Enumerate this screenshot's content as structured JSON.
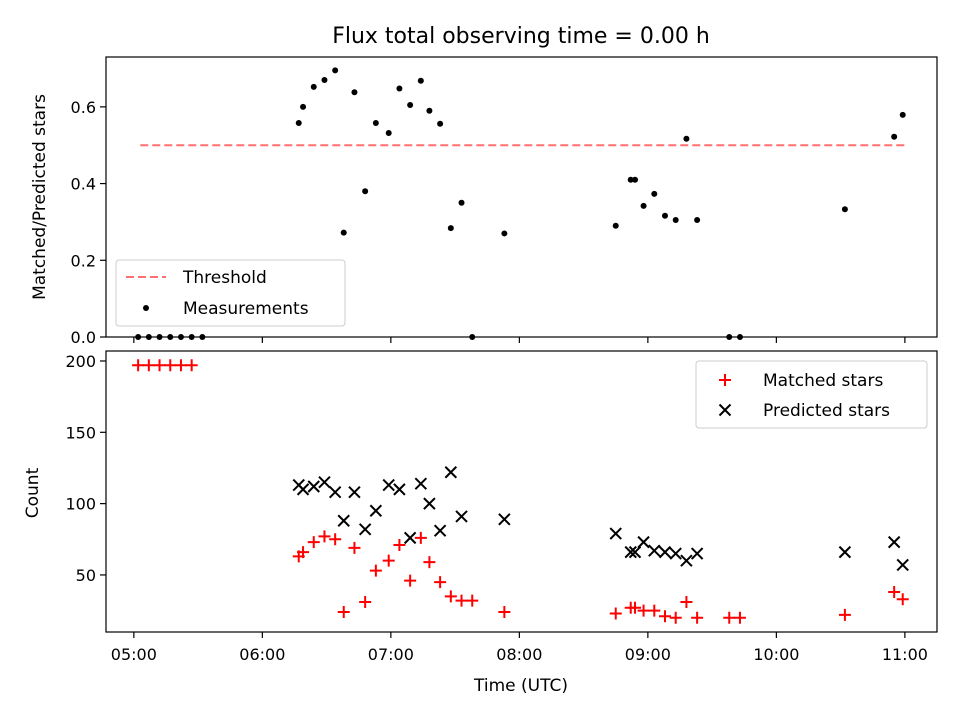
{
  "chart_data": [
    {
      "type": "scatter",
      "title": "Flux total observing time = 0.00 h",
      "xlabel": "",
      "ylabel": "Matched/Predicted stars",
      "xlim": [
        "04:47",
        "11:15"
      ],
      "ylim": [
        0,
        0.73
      ],
      "yticks": [
        0.0,
        0.2,
        0.4,
        0.6
      ],
      "ytick_labels": [
        "0.0",
        "0.2",
        "0.4",
        "0.6"
      ],
      "legend": {
        "placement": "bottom-left",
        "entries": [
          "Threshold",
          "Measurements"
        ]
      },
      "threshold": {
        "name": "Threshold",
        "value": 0.5,
        "x_start": "05:03",
        "x_end": "11:00",
        "color": "#ff6f6f",
        "style": "dashed"
      },
      "series": [
        {
          "name": "Measurements",
          "color": "#000000",
          "marker": "dot",
          "points": [
            [
              "05:02",
              0.0
            ],
            [
              "05:07",
              0.0
            ],
            [
              "05:12",
              0.0
            ],
            [
              "05:17",
              0.0
            ],
            [
              "05:22",
              0.0
            ],
            [
              "05:27",
              0.0
            ],
            [
              "05:32",
              0.0
            ],
            [
              "06:17",
              0.558
            ],
            [
              "06:19",
              0.6
            ],
            [
              "06:24",
              0.652
            ],
            [
              "06:29",
              0.67
            ],
            [
              "06:34",
              0.695
            ],
            [
              "06:38",
              0.272
            ],
            [
              "06:43",
              0.638
            ],
            [
              "06:48",
              0.38
            ],
            [
              "06:53",
              0.558
            ],
            [
              "06:59",
              0.532
            ],
            [
              "07:04",
              0.648
            ],
            [
              "07:09",
              0.605
            ],
            [
              "07:14",
              0.668
            ],
            [
              "07:18",
              0.59
            ],
            [
              "07:23",
              0.556
            ],
            [
              "07:28",
              0.284
            ],
            [
              "07:33",
              0.35
            ],
            [
              "07:38",
              0.0
            ],
            [
              "07:53",
              0.27
            ],
            [
              "08:45",
              0.29
            ],
            [
              "08:52",
              0.41
            ],
            [
              "08:54",
              0.41
            ],
            [
              "08:58",
              0.342
            ],
            [
              "09:03",
              0.373
            ],
            [
              "09:08",
              0.316
            ],
            [
              "09:13",
              0.305
            ],
            [
              "09:18",
              0.517
            ],
            [
              "09:23",
              0.305
            ],
            [
              "09:38",
              0.0
            ],
            [
              "09:43",
              0.0
            ],
            [
              "10:32",
              0.333
            ],
            [
              "10:55",
              0.522
            ],
            [
              "10:59",
              0.579
            ]
          ]
        }
      ]
    },
    {
      "type": "scatter",
      "title": "",
      "xlabel": "Time (UTC)",
      "ylabel": "Count",
      "xlim": [
        "04:47",
        "11:15"
      ],
      "ylim": [
        10,
        207
      ],
      "yticks": [
        50,
        100,
        150,
        200
      ],
      "ytick_labels": [
        "50",
        "100",
        "150",
        "200"
      ],
      "xticks": [
        "05:00",
        "06:00",
        "07:00",
        "08:00",
        "09:00",
        "10:00",
        "11:00"
      ],
      "legend": {
        "placement": "top-right",
        "entries": [
          "Matched stars",
          "Predicted stars"
        ]
      },
      "series": [
        {
          "name": "Matched stars",
          "color": "#ff0000",
          "marker": "plus",
          "points": [
            [
              "05:02",
              197
            ],
            [
              "05:07",
              197
            ],
            [
              "05:12",
              197
            ],
            [
              "05:17",
              197
            ],
            [
              "05:22",
              197
            ],
            [
              "05:27",
              197
            ],
            [
              "06:17",
              63
            ],
            [
              "06:19",
              66
            ],
            [
              "06:24",
              73
            ],
            [
              "06:29",
              77
            ],
            [
              "06:34",
              75
            ],
            [
              "06:38",
              24
            ],
            [
              "06:43",
              69
            ],
            [
              "06:48",
              31
            ],
            [
              "06:53",
              53
            ],
            [
              "06:59",
              60
            ],
            [
              "07:04",
              71
            ],
            [
              "07:09",
              46
            ],
            [
              "07:14",
              76
            ],
            [
              "07:18",
              59
            ],
            [
              "07:23",
              45
            ],
            [
              "07:28",
              35
            ],
            [
              "07:33",
              32
            ],
            [
              "07:38",
              32
            ],
            [
              "07:53",
              24
            ],
            [
              "08:45",
              23
            ],
            [
              "08:52",
              27
            ],
            [
              "08:54",
              27
            ],
            [
              "08:58",
              25
            ],
            [
              "09:03",
              25
            ],
            [
              "09:08",
              21
            ],
            [
              "09:13",
              20
            ],
            [
              "09:18",
              31
            ],
            [
              "09:23",
              20
            ],
            [
              "09:38",
              20
            ],
            [
              "09:43",
              20
            ],
            [
              "10:32",
              22
            ],
            [
              "10:55",
              38
            ],
            [
              "10:59",
              33
            ]
          ]
        },
        {
          "name": "Predicted stars",
          "color": "#000000",
          "marker": "x",
          "points": [
            [
              "06:17",
              113
            ],
            [
              "06:19",
              110
            ],
            [
              "06:24",
              112
            ],
            [
              "06:29",
              115
            ],
            [
              "06:34",
              108
            ],
            [
              "06:38",
              88
            ],
            [
              "06:43",
              108
            ],
            [
              "06:48",
              82
            ],
            [
              "06:53",
              95
            ],
            [
              "06:59",
              113
            ],
            [
              "07:04",
              110
            ],
            [
              "07:09",
              76
            ],
            [
              "07:14",
              114
            ],
            [
              "07:18",
              100
            ],
            [
              "07:23",
              81
            ],
            [
              "07:28",
              122
            ],
            [
              "07:33",
              91
            ],
            [
              "07:53",
              89
            ],
            [
              "08:45",
              79
            ],
            [
              "08:52",
              66
            ],
            [
              "08:54",
              66
            ],
            [
              "08:58",
              73
            ],
            [
              "09:03",
              67
            ],
            [
              "09:08",
              66
            ],
            [
              "09:13",
              65
            ],
            [
              "09:18",
              60
            ],
            [
              "09:23",
              65
            ],
            [
              "10:32",
              66
            ],
            [
              "10:55",
              73
            ],
            [
              "10:59",
              57
            ]
          ]
        }
      ]
    }
  ]
}
